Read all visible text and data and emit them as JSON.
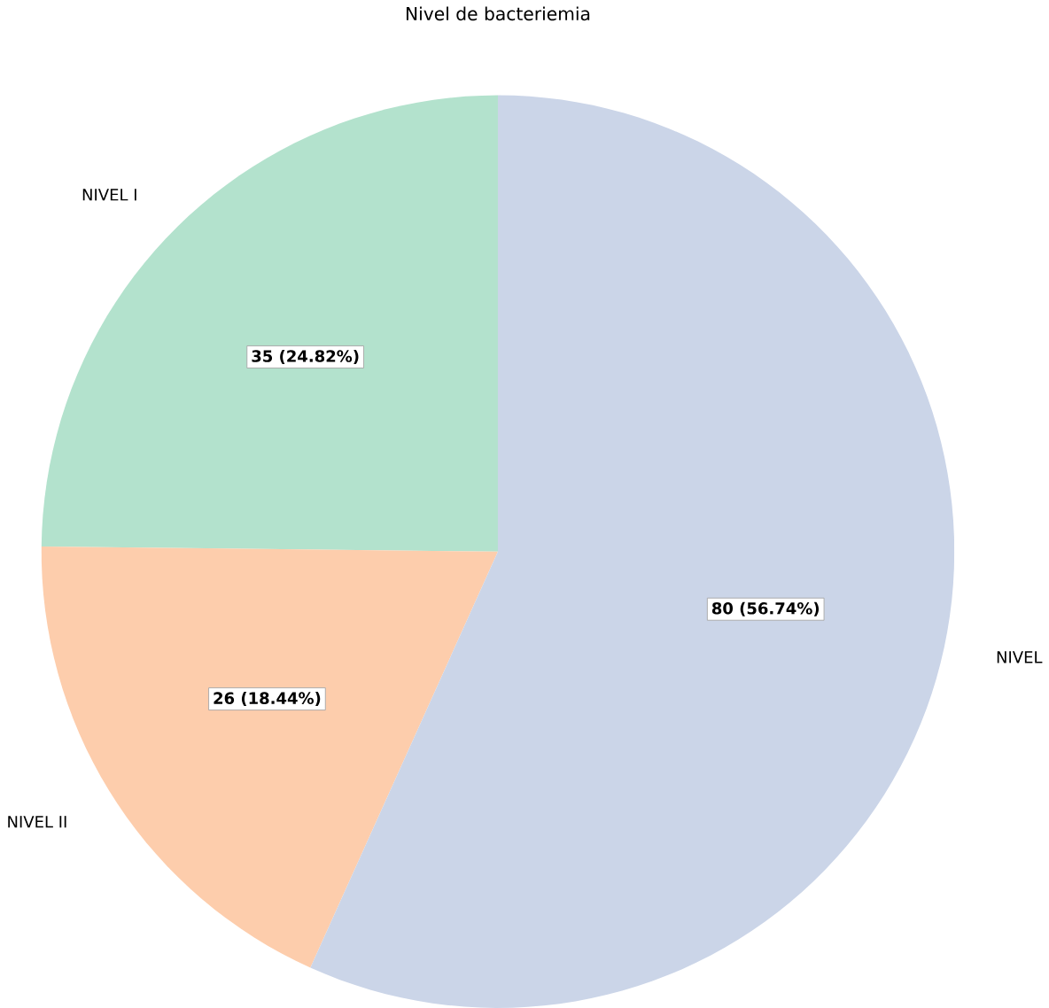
{
  "chart_data": {
    "type": "pie",
    "title": "Nivel de bacteriemia",
    "categories": [
      "NIVEL I",
      "NIVEL II",
      "NIVEL"
    ],
    "values": [
      35,
      26,
      80
    ],
    "colors": [
      "#b3e2cd",
      "#fdcdac",
      "#cbd5e8"
    ],
    "value_labels": [
      "35 (24.82%)",
      "26 (18.44%)",
      "80 (56.74%)"
    ]
  }
}
